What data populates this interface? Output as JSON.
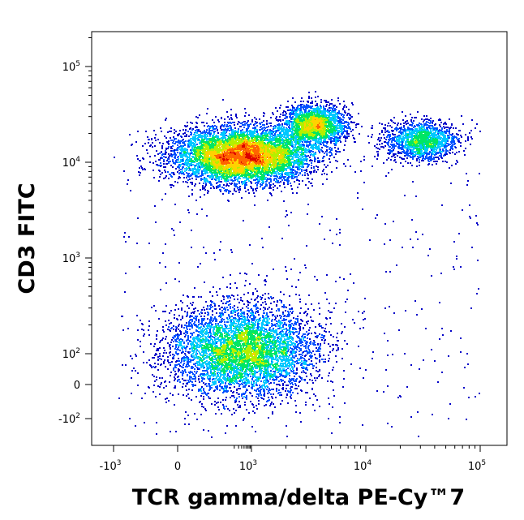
{
  "chart_data": {
    "type": "scatter",
    "subtype": "flow-cytometry-density-dot-plot",
    "xlabel": "TCR gamma/delta PE-Cy™7",
    "ylabel": "CD3 FITC",
    "x_scale": "biexponential",
    "y_scale": "biexponential",
    "xlim": [
      -2000,
      250000
    ],
    "ylim": [
      -300,
      250000
    ],
    "x_ticks": [
      {
        "value": -1000,
        "base": "-10",
        "exp": "3"
      },
      {
        "value": 0,
        "base": "0",
        "exp": ""
      },
      {
        "value": 1000,
        "base": "10",
        "exp": "3"
      },
      {
        "value": 10000,
        "base": "10",
        "exp": "4"
      },
      {
        "value": 100000,
        "base": "10",
        "exp": "5"
      }
    ],
    "y_ticks": [
      {
        "value": -100,
        "base": "-10",
        "exp": "2"
      },
      {
        "value": 0,
        "base": "0",
        "exp": ""
      },
      {
        "value": 100,
        "base": "10",
        "exp": "2"
      },
      {
        "value": 1000,
        "base": "10",
        "exp": "3"
      },
      {
        "value": 10000,
        "base": "10",
        "exp": "4"
      },
      {
        "value": 100000,
        "base": "10",
        "exp": "5"
      }
    ],
    "color_scale": [
      "#0000c8",
      "#0050ff",
      "#00c8ff",
      "#00e664",
      "#b4f000",
      "#ffd200",
      "#ff6400",
      "#dc0000"
    ],
    "populations": [
      {
        "x_center": 400,
        "y_center": 12000,
        "events": 9000
      },
      {
        "x_center": 3500,
        "y_center": 25000,
        "events": 2200
      },
      {
        "x_center": 30000,
        "y_center": 17000,
        "events": 1500
      },
      {
        "x_center": 400,
        "y_center": 110,
        "events": 8000
      }
    ],
    "grid": false,
    "legend": "none"
  }
}
